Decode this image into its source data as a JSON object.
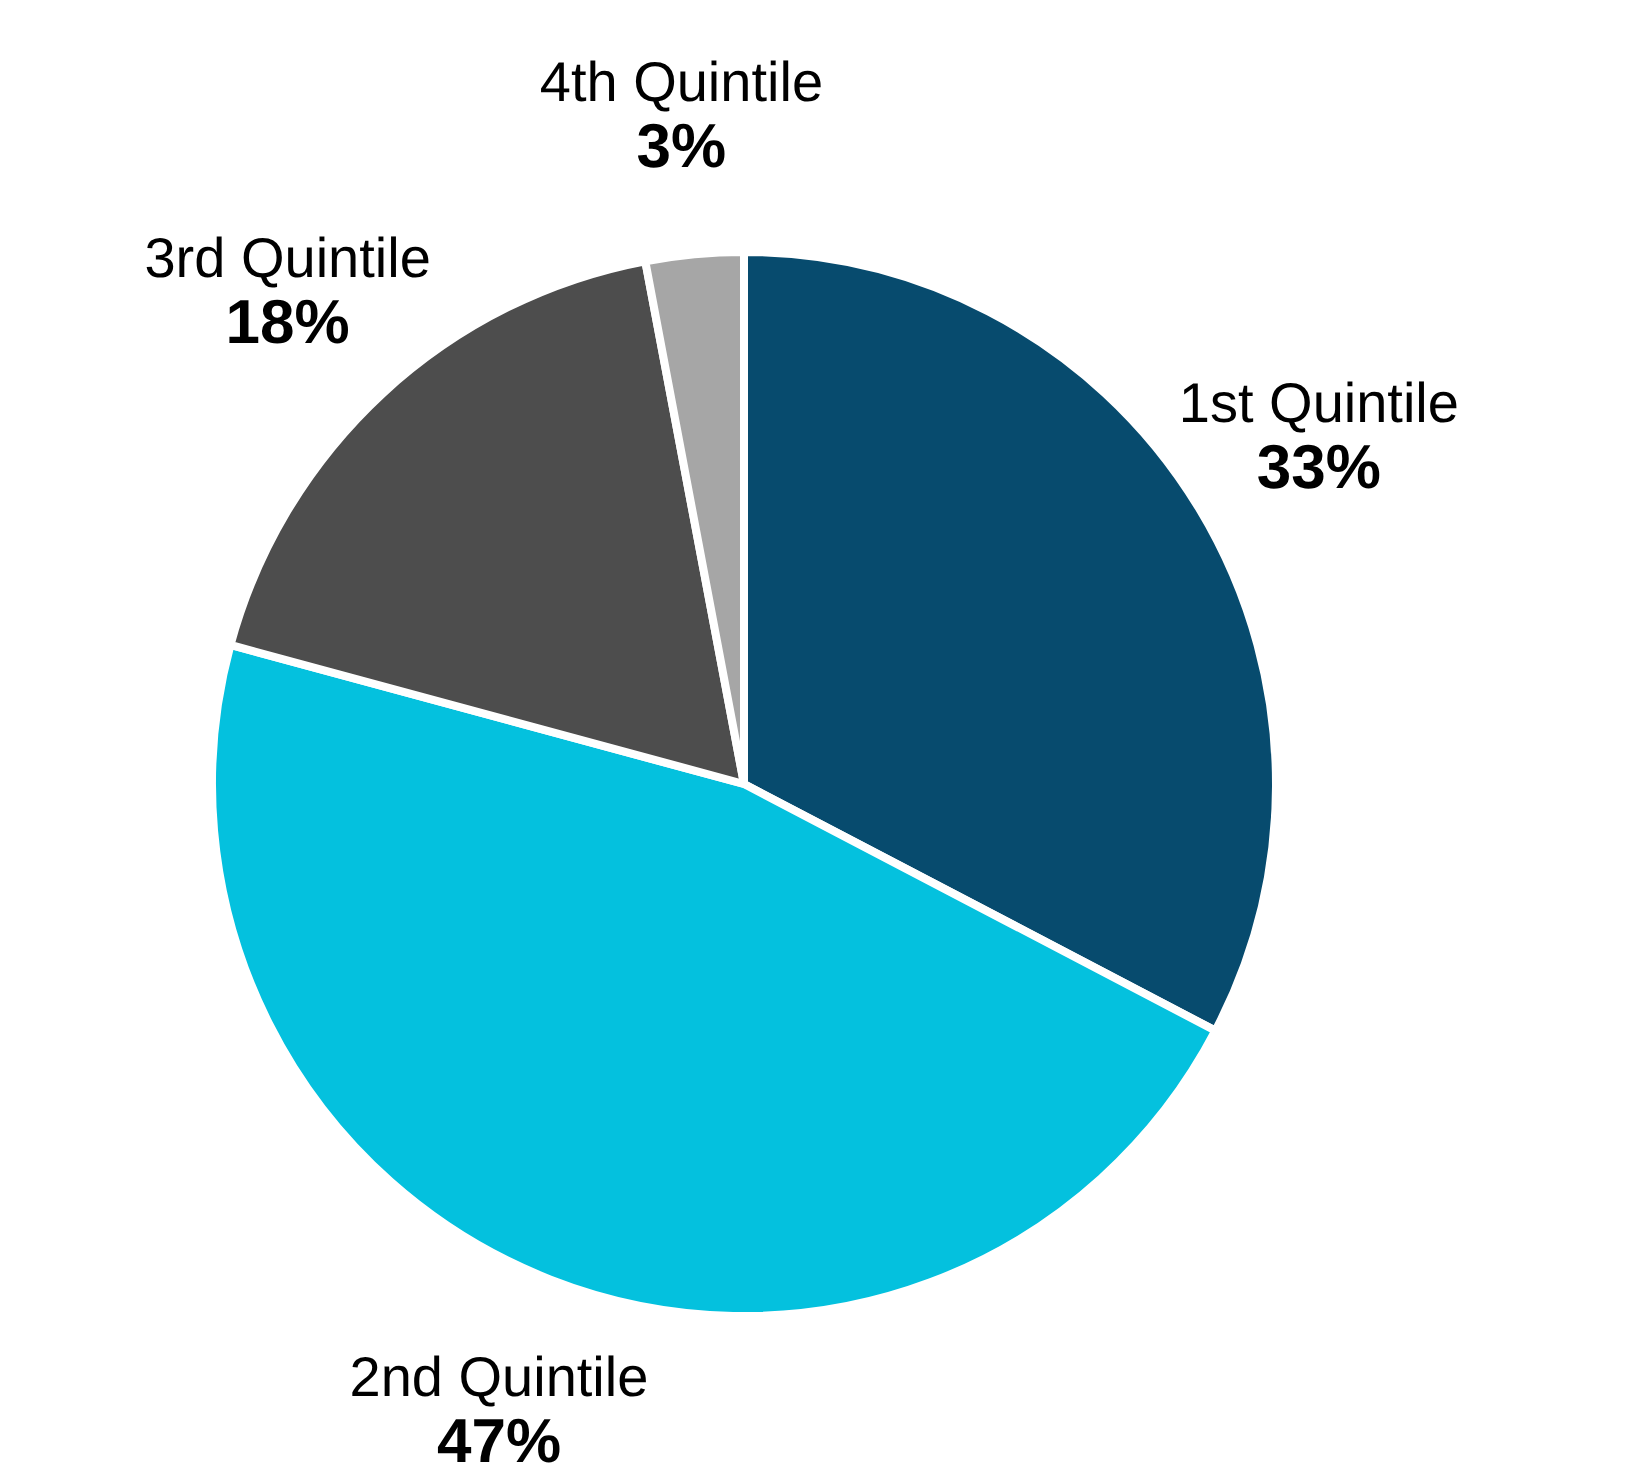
{
  "chart_data": {
    "type": "pie",
    "categories": [
      "1st Quintile",
      "2nd Quintile",
      "3rd Quintile",
      "4th Quintile"
    ],
    "values": [
      33,
      47,
      18,
      3
    ],
    "value_labels": [
      "33%",
      "47%",
      "18%",
      "3%"
    ],
    "colors": [
      "#074b6e",
      "#04c1de",
      "#4d4d4d",
      "#a6a6a6"
    ]
  }
}
